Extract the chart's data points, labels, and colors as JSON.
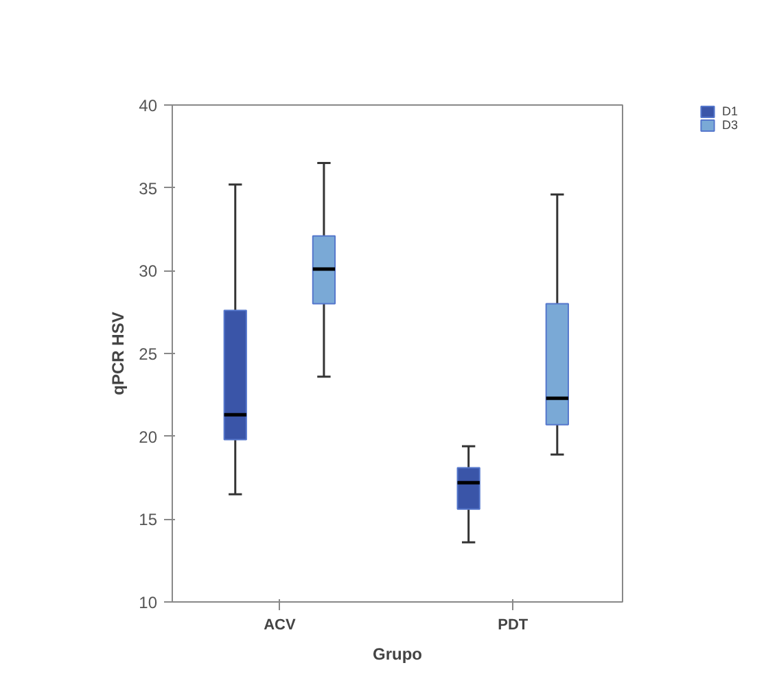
{
  "chart_data": {
    "type": "box",
    "xlabel": "Grupo",
    "ylabel": "qPCR HSV",
    "categories": [
      "ACV",
      "PDT"
    ],
    "ylim": [
      10,
      40
    ],
    "yticks": [
      10,
      15,
      20,
      25,
      30,
      35,
      40
    ],
    "grid": false,
    "legend": "top right",
    "series": [
      {
        "name": "D1",
        "color": "#3a55a8",
        "boxes": [
          {
            "low": 16.5,
            "q1": 19.8,
            "median": 21.3,
            "q3": 27.6,
            "high": 35.2
          },
          {
            "low": 13.6,
            "q1": 15.6,
            "median": 17.2,
            "q3": 18.1,
            "high": 19.4
          }
        ]
      },
      {
        "name": "D3",
        "color": "#7aa9d6",
        "boxes": [
          {
            "low": 23.6,
            "q1": 28.0,
            "median": 30.1,
            "q3": 32.1,
            "high": 36.5
          },
          {
            "low": 18.9,
            "q1": 20.7,
            "median": 22.3,
            "q3": 28.0,
            "high": 34.6
          }
        ]
      }
    ]
  }
}
